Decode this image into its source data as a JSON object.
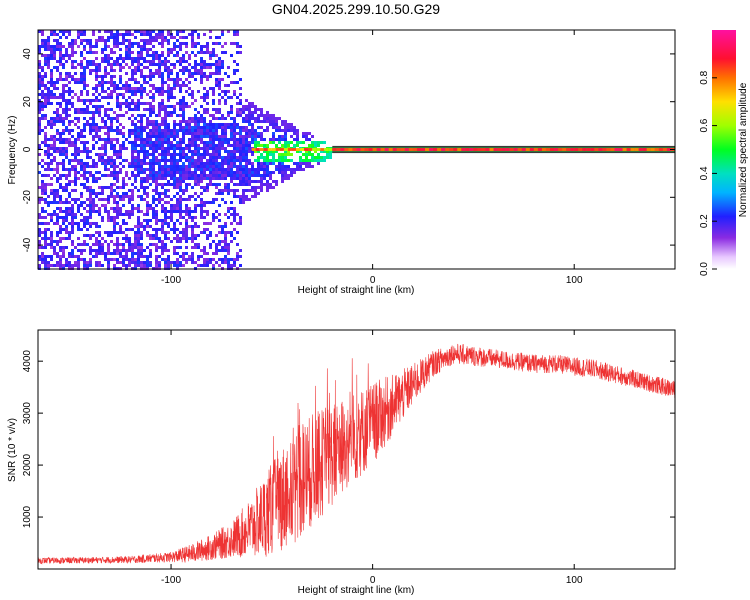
{
  "chart_data": [
    {
      "type": "heatmap",
      "title": "GN04.2025.299.10.50.G29",
      "xlabel": "Height of straight line (km)",
      "ylabel": "Frequency (Hz)",
      "xlim": [
        -166,
        150
      ],
      "ylim": [
        -50,
        50
      ],
      "xticks": [
        -100,
        0,
        100
      ],
      "xtick_labels": [
        "-100",
        "0",
        "100"
      ],
      "yticks": [
        -40,
        -20,
        0,
        20,
        40
      ],
      "ytick_labels": [
        "-40",
        "-20",
        "0",
        "20",
        "40"
      ],
      "colorbar": {
        "label": "Normalized spectral amplitude",
        "range": [
          0,
          1
        ],
        "ticks": [
          0.0,
          0.2,
          0.4,
          0.6,
          0.8
        ],
        "tick_labels": [
          "0.0",
          "0.2",
          "0.4",
          "0.6",
          "0.8"
        ],
        "colormap": "rainbow (white-violet-blue-cyan-green-yellow-red-magenta)"
      },
      "features": {
        "signal_line_frequency_hz": 0,
        "signal_band_hz": [
          -1.5,
          1.5
        ],
        "noise_spread_region_km": [
          -166,
          -20
        ],
        "strong_signal_region_km": [
          -60,
          150
        ]
      }
    },
    {
      "type": "line",
      "xlabel": "Height of straight line (km)",
      "ylabel": "SNR (10 * v/v)",
      "xlim": [
        -166,
        150
      ],
      "ylim": [
        0,
        4600
      ],
      "xticks": [
        -100,
        0,
        100
      ],
      "xtick_labels": [
        "-100",
        "0",
        "100"
      ],
      "yticks": [
        1000,
        2000,
        3000,
        4000
      ],
      "ytick_labels": [
        "1000",
        "2000",
        "3000",
        "4000"
      ],
      "line_color": "#ee3333",
      "series": [
        {
          "name": "SNR",
          "x": [
            -166,
            -140,
            -120,
            -100,
            -90,
            -80,
            -70,
            -60,
            -50,
            -40,
            -30,
            -20,
            -10,
            0,
            10,
            20,
            30,
            40,
            50,
            60,
            70,
            80,
            90,
            100,
            110,
            120,
            130,
            140,
            150
          ],
          "y": [
            160,
            170,
            180,
            230,
            300,
            420,
            560,
            800,
            1150,
            1550,
            1900,
            2200,
            2500,
            2800,
            3150,
            3550,
            3950,
            4150,
            4100,
            4050,
            4000,
            3950,
            3950,
            3900,
            3850,
            3750,
            3650,
            3550,
            3450
          ],
          "noise_amplitude": [
            60,
            60,
            70,
            100,
            180,
            250,
            350,
            600,
            900,
            1100,
            1100,
            1000,
            900,
            800,
            600,
            400,
            250,
            200,
            200,
            180,
            180,
            180,
            180,
            180,
            180,
            180,
            170,
            170,
            170
          ]
        }
      ]
    }
  ]
}
